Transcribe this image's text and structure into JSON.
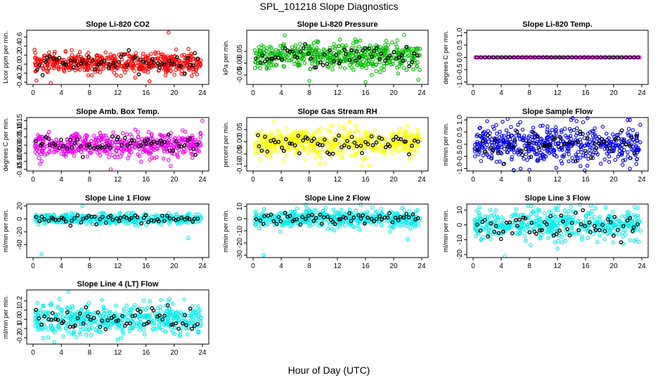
{
  "figure": {
    "title": "SPL_101218  Slope Diagnostics",
    "xlabel": "Hour of Day (UTC)"
  },
  "chart_data": [
    {
      "type": "scatter",
      "title": "Slope Li-820 CO2",
      "ylabel": "Licor ppm per min.",
      "color": "#ff0000",
      "xlim": [
        0,
        24
      ],
      "xticks": [
        0,
        4,
        8,
        12,
        16,
        20,
        24
      ],
      "ylim": [
        -0.45,
        0.75
      ],
      "yticks": [
        -0.4,
        -0.2,
        0.0,
        0.2,
        0.4,
        0.6
      ],
      "ytick_labels": [
        "-0.4",
        "-0.2",
        "0.0",
        "0.2",
        "0.4",
        "0.6"
      ],
      "n_points": 520,
      "n_black": 60,
      "center": 0.02,
      "spread": 0.11,
      "outliers": [
        [
          19.2,
          0.7
        ],
        [
          2.5,
          -0.42
        ],
        [
          16.5,
          -0.38
        ]
      ]
    },
    {
      "type": "scatter",
      "title": "Slope Li-820 Pressure",
      "ylabel": "kPa per min.",
      "color": "#00bb00",
      "xlim": [
        0,
        24
      ],
      "xticks": [
        0,
        4,
        8,
        12,
        16,
        20,
        24
      ],
      "ylim": [
        -0.09,
        0.14
      ],
      "yticks": [
        -0.05,
        0.0,
        0.05
      ],
      "ytick_labels": [
        "-0.05",
        "0.00",
        "0.05"
      ],
      "n_points": 520,
      "n_black": 60,
      "center": 0.03,
      "spread": 0.028,
      "outliers": [
        [
          21.5,
          0.12
        ],
        [
          16,
          -0.08
        ],
        [
          8,
          -0.075
        ],
        [
          23.5,
          -0.07
        ]
      ]
    },
    {
      "type": "line-scatter",
      "title": "Slope Li-820 Temp.",
      "ylabel": "degrees C per min.",
      "color": "#ee00ee",
      "xlim": [
        0,
        24
      ],
      "xticks": [
        0,
        4,
        8,
        12,
        16,
        20,
        24
      ],
      "ylim": [
        -1.1,
        1.1
      ],
      "yticks": [
        -1.0,
        -0.5,
        0.0,
        0.5,
        1.0
      ],
      "ytick_labels": [
        "-1.0",
        "-0.5",
        "0.0",
        "0.5",
        "1.0"
      ],
      "n_points": 80,
      "n_black": 40,
      "center": 0.0,
      "spread": 0.0,
      "outliers": []
    },
    {
      "type": "scatter",
      "title": "Slope Amb. Box Temp.",
      "ylabel": "degrees C per min.",
      "color": "#ee00ee",
      "xlim": [
        0,
        24
      ],
      "xticks": [
        0,
        4,
        8,
        12,
        16,
        20,
        24
      ],
      "ylim": [
        -0.16,
        0.17
      ],
      "yticks": [
        -0.15,
        -0.1,
        -0.05,
        0.0,
        0.05,
        0.1,
        0.15
      ],
      "ytick_labels": [
        "-0.15",
        "-0.10",
        "-0.05",
        "0.00",
        "0.05",
        "0.10",
        "0.15"
      ],
      "n_points": 520,
      "n_black": 60,
      "center": 0.0,
      "spread": 0.035,
      "outliers": [
        [
          11,
          -0.15
        ],
        [
          19.5,
          -0.13
        ],
        [
          24,
          0.15
        ]
      ]
    },
    {
      "type": "scatter",
      "title": "Slope Gas Stream RH",
      "ylabel": "percent per min.",
      "color": "#ffff00",
      "xlim": [
        0,
        24
      ],
      "xticks": [
        0,
        4,
        8,
        12,
        16,
        20,
        24
      ],
      "ylim": [
        -0.12,
        0.1
      ],
      "yticks": [
        -0.1,
        -0.05,
        0.0,
        0.05
      ],
      "ytick_labels": [
        "-0.10",
        "-0.05",
        "0.00",
        "0.05"
      ],
      "n_points": 520,
      "n_black": 60,
      "center": -0.005,
      "spread": 0.028,
      "outliers": [
        [
          9.5,
          -0.09
        ],
        [
          3,
          0.085
        ],
        [
          15.5,
          -0.1
        ]
      ]
    },
    {
      "type": "scatter",
      "title": "Slope Sample Flow",
      "ylabel": "ml/min per min.",
      "color": "#0000ee",
      "xlim": [
        0,
        24
      ],
      "xticks": [
        0,
        4,
        8,
        12,
        16,
        20,
        24
      ],
      "ylim": [
        -1.1,
        1.1
      ],
      "yticks": [
        -1.0,
        -0.5,
        0.0,
        0.5,
        1.0
      ],
      "ytick_labels": [
        "-1.0",
        "-0.5",
        "0.0",
        "0.5",
        "1.0"
      ],
      "n_points": 520,
      "n_black": 60,
      "center": 0.0,
      "spread": 0.38,
      "outliers": [
        [
          8,
          -1.05
        ],
        [
          2,
          0.95
        ],
        [
          22,
          1.0
        ]
      ]
    },
    {
      "type": "scatter",
      "title": "Slope Line 1 Flow",
      "ylabel": "ml/min per min.",
      "color": "#00eeee",
      "xlim": [
        0,
        24
      ],
      "xticks": [
        0,
        4,
        8,
        12,
        16,
        20,
        24
      ],
      "ylim": [
        -60,
        23
      ],
      "yticks": [
        -40,
        -20,
        0,
        20
      ],
      "ytick_labels": [
        "-40",
        "-20",
        "0",
        "20"
      ],
      "n_points": 420,
      "n_black": 60,
      "center": 0.0,
      "spread": 4,
      "outliers": [
        [
          1.2,
          -55
        ],
        [
          22,
          -30
        ],
        [
          7,
          20
        ]
      ]
    },
    {
      "type": "scatter",
      "title": "Slope Line 2 Flow",
      "ylabel": "ml/min per min.",
      "color": "#00eeee",
      "xlim": [
        0,
        24
      ],
      "xticks": [
        0,
        4,
        8,
        12,
        16,
        20,
        24
      ],
      "ylim": [
        -32,
        12
      ],
      "yticks": [
        -30,
        -20,
        -10,
        0,
        10
      ],
      "ytick_labels": [
        "-30",
        "-20",
        "-10",
        "0",
        "10"
      ],
      "n_points": 480,
      "n_black": 60,
      "center": 0.0,
      "spread": 3.5,
      "outliers": [
        [
          1.5,
          -30
        ],
        [
          22,
          -17
        ]
      ]
    },
    {
      "type": "scatter",
      "title": "Slope Line 3 Flow",
      "ylabel": "ml/min per min.",
      "color": "#00eeee",
      "xlim": [
        0,
        24
      ],
      "xticks": [
        0,
        4,
        8,
        12,
        16,
        20,
        24
      ],
      "ylim": [
        -22,
        14
      ],
      "yticks": [
        -20,
        -10,
        0,
        10
      ],
      "ytick_labels": [
        "-20",
        "-10",
        "0",
        "10"
      ],
      "n_points": 480,
      "n_black": 60,
      "center": 0.0,
      "spread": 5,
      "outliers": [
        [
          4.5,
          -21
        ],
        [
          12,
          -16
        ],
        [
          23,
          12
        ]
      ]
    },
    {
      "type": "scatter",
      "title": "Slope Line 4 (LT) Flow",
      "ylabel": "ml/min per min.",
      "color": "#00eeee",
      "xlim": [
        0,
        24
      ],
      "xticks": [
        0,
        4,
        8,
        12,
        16,
        20,
        24
      ],
      "ylim": [
        -0.27,
        0.32
      ],
      "yticks": [
        -0.2,
        -0.1,
        0.0,
        0.1,
        0.2
      ],
      "ytick_labels": [
        "-0.2",
        "-0.1",
        "0.0",
        "0.1",
        "0.2"
      ],
      "n_points": 480,
      "n_black": 60,
      "center": 0.0,
      "spread": 0.08,
      "outliers": [
        [
          5,
          0.3
        ],
        [
          3,
          -0.25
        ],
        [
          12,
          -0.22
        ]
      ]
    }
  ]
}
